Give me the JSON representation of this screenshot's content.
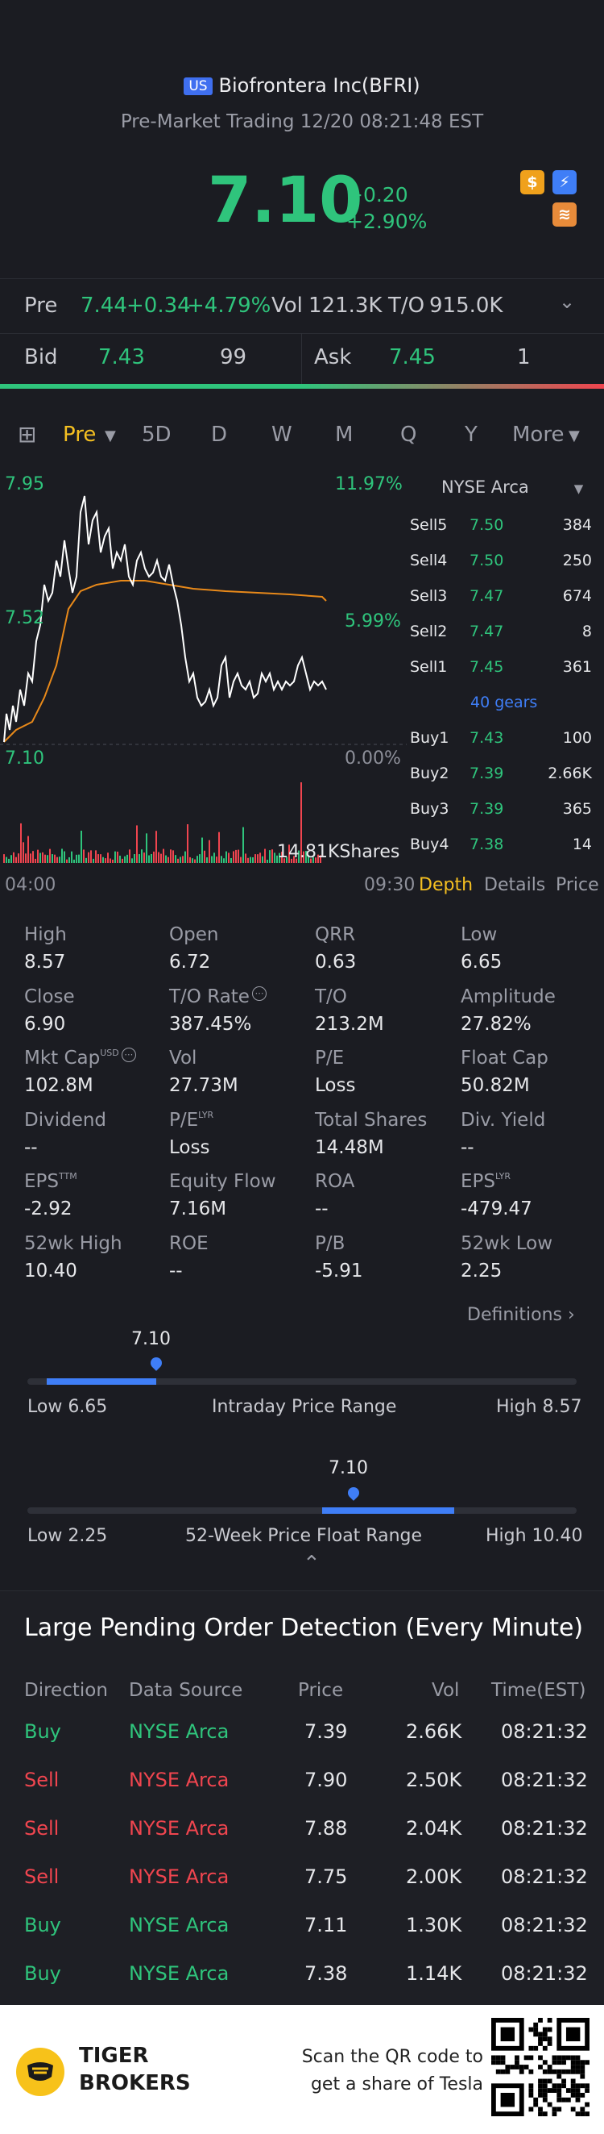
{
  "header": {
    "market_badge": "US",
    "title": "Biofrontera Inc(BFRI)",
    "subtitle": "Pre-Market Trading 12/20 08:21:48 EST",
    "price": "7.10",
    "change": "+0.20",
    "change_pct": "+2.90%",
    "icons": [
      "dollar-icon",
      "lightning-icon",
      "stack-icon"
    ]
  },
  "premarket": {
    "label": "Pre",
    "price": "7.44",
    "change": "+0.34",
    "change_pct": "+4.79%",
    "vol_label": "Vol",
    "vol": "121.3K",
    "to_label": "T/O",
    "to": "915.0K"
  },
  "quote": {
    "bid_label": "Bid",
    "bid": "7.43",
    "bid_size": "99",
    "ask_label": "Ask",
    "ask": "7.45",
    "ask_size": "1"
  },
  "tabs": {
    "items": [
      "Pre",
      "5D",
      "D",
      "W",
      "M",
      "Q",
      "Y",
      "More"
    ],
    "active": "Pre"
  },
  "chart": {
    "y_top": "7.95",
    "y_mid": "7.52",
    "y_bot": "7.10",
    "pct_top": "11.97%",
    "pct_mid": "5.99%",
    "pct_bot": "0.00%",
    "vol_label": "14.81KShares",
    "x_start": "04:00",
    "x_end": "09:30",
    "colors": {
      "price": "#ffffff",
      "avg": "#e8891a",
      "vol_up": "#2fc47c",
      "vol_down": "#f0454f"
    }
  },
  "depth": {
    "exchange": "NYSE Arca",
    "sells": [
      {
        "label": "Sell5",
        "price": "7.50",
        "size": "384"
      },
      {
        "label": "Sell4",
        "price": "7.50",
        "size": "250"
      },
      {
        "label": "Sell3",
        "price": "7.47",
        "size": "674"
      },
      {
        "label": "Sell2",
        "price": "7.47",
        "size": "8"
      },
      {
        "label": "Sell1",
        "price": "7.45",
        "size": "361"
      }
    ],
    "gears": "40 gears",
    "buys": [
      {
        "label": "Buy1",
        "price": "7.43",
        "size": "100"
      },
      {
        "label": "Buy2",
        "price": "7.39",
        "size": "2.66K"
      },
      {
        "label": "Buy3",
        "price": "7.39",
        "size": "365"
      },
      {
        "label": "Buy4",
        "price": "7.38",
        "size": "14"
      }
    ],
    "tabs": [
      "Depth",
      "Details",
      "Price"
    ]
  },
  "stats": [
    {
      "label": "High",
      "value": "8.57"
    },
    {
      "label": "Open",
      "value": "6.72"
    },
    {
      "label": "QRR",
      "value": "0.63"
    },
    {
      "label": "Low",
      "value": "6.65"
    },
    {
      "label": "Close",
      "value": "6.90"
    },
    {
      "label": "T/O Rate",
      "value": "387.45%"
    },
    {
      "label": "T/O",
      "value": "213.2M"
    },
    {
      "label": "Amplitude",
      "value": "27.82%"
    },
    {
      "label": "Mkt Cap",
      "value": "102.8M",
      "sup": "USD"
    },
    {
      "label": "Vol",
      "value": "27.73M"
    },
    {
      "label": "P/E",
      "value": "Loss"
    },
    {
      "label": "Float Cap",
      "value": "50.82M"
    },
    {
      "label": "Dividend",
      "value": "--"
    },
    {
      "label": "P/E",
      "value": "Loss",
      "sup": "LYR"
    },
    {
      "label": "Total Shares",
      "value": "14.48M"
    },
    {
      "label": "Div. Yield",
      "value": "--"
    },
    {
      "label": "EPS",
      "value": "-2.92",
      "sup": "TTM"
    },
    {
      "label": "Equity Flow",
      "value": "7.16M"
    },
    {
      "label": "ROA",
      "value": "--"
    },
    {
      "label": "EPS",
      "value": "-479.47",
      "sup": "LYR"
    },
    {
      "label": "52wk High",
      "value": "10.40"
    },
    {
      "label": "ROE",
      "value": "--"
    },
    {
      "label": "P/B",
      "value": "-5.91"
    },
    {
      "label": "52wk Low",
      "value": "2.25"
    }
  ],
  "definitions_label": "Definitions",
  "intraday_range": {
    "current": "7.10",
    "low_label": "Low 6.65",
    "title": "Intraday Price Range",
    "high_label": "High 8.57",
    "low": 6.65,
    "high": 8.57,
    "value": 7.1
  },
  "week52_range": {
    "current": "7.10",
    "low_label": "Low 2.25",
    "title": "52-Week Price Float Range",
    "high_label": "High 10.40",
    "low": 2.25,
    "high": 10.4,
    "value": 7.1
  },
  "orders": {
    "title": "Large Pending Order Detection (Every Minute)",
    "headers": [
      "Direction",
      "Data Source",
      "Price",
      "Vol",
      "Time(EST)"
    ],
    "rows": [
      {
        "direction": "Buy",
        "source": "NYSE Arca",
        "price": "7.39",
        "vol": "2.66K",
        "time": "08:21:32"
      },
      {
        "direction": "Sell",
        "source": "NYSE Arca",
        "price": "7.90",
        "vol": "2.50K",
        "time": "08:21:32"
      },
      {
        "direction": "Sell",
        "source": "NYSE Arca",
        "price": "7.88",
        "vol": "2.04K",
        "time": "08:21:32"
      },
      {
        "direction": "Sell",
        "source": "NYSE Arca",
        "price": "7.75",
        "vol": "2.00K",
        "time": "08:21:32"
      },
      {
        "direction": "Buy",
        "source": "NYSE Arca",
        "price": "7.11",
        "vol": "1.30K",
        "time": "08:21:32"
      },
      {
        "direction": "Buy",
        "source": "NYSE Arca",
        "price": "7.38",
        "vol": "1.14K",
        "time": "08:21:32"
      }
    ]
  },
  "footer": {
    "brand_line1": "TIGER",
    "brand_line2": "BROKERS",
    "qr_line1": "Scan the QR code to",
    "qr_line2": "get a share of Tesla"
  }
}
